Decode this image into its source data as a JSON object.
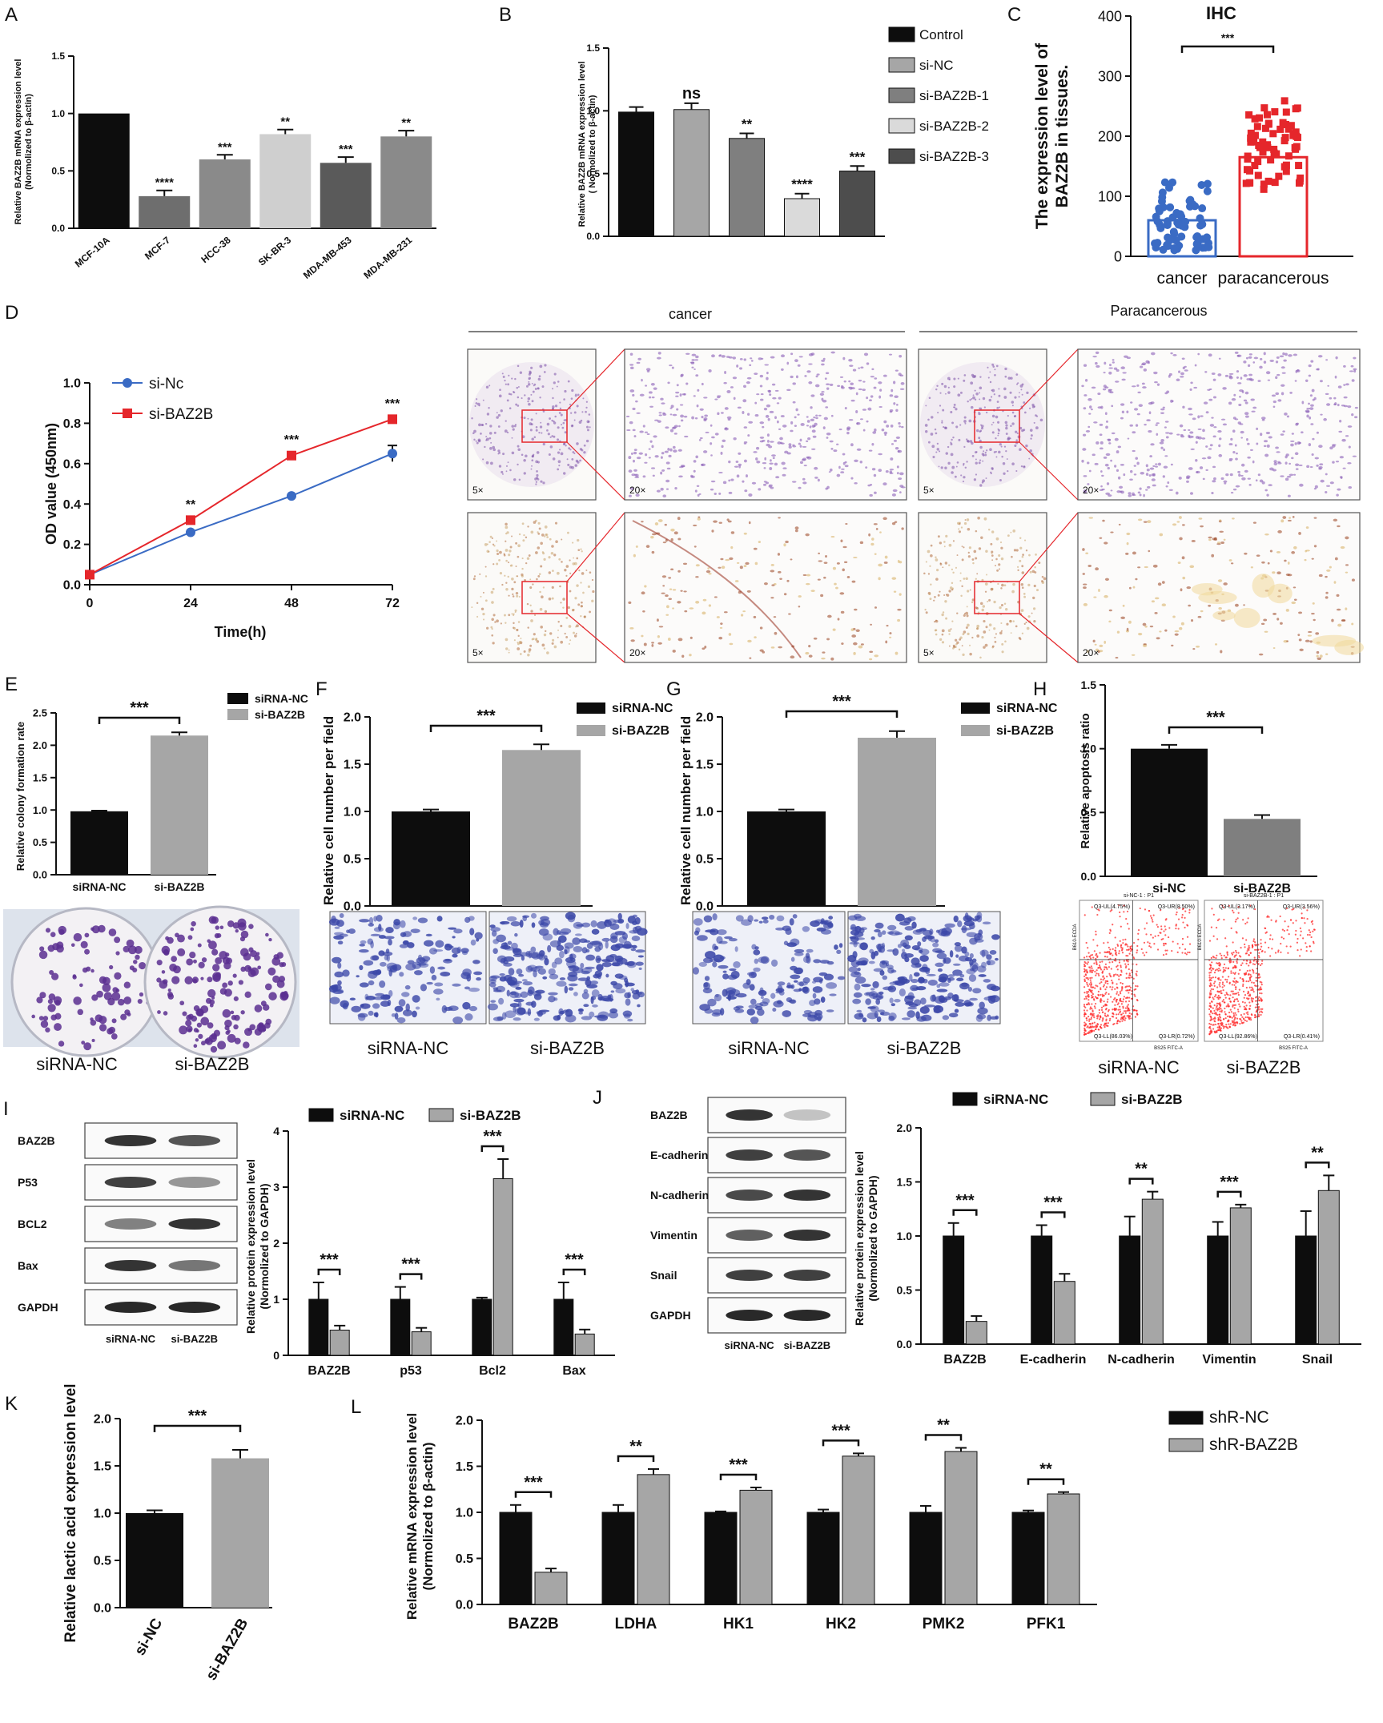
{
  "panel_letters": [
    "A",
    "B",
    "C",
    "D",
    "E",
    "F",
    "G",
    "H",
    "I",
    "J",
    "K",
    "L"
  ],
  "colors": {
    "black": "#0d0d0d",
    "gray_light": "#c8c8c8",
    "gray_med": "#a6a6a6",
    "gray_dark": "#7f7f7f",
    "gray_darker": "#5a5a5a",
    "blue": "#3a6bc4",
    "red": "#e5262b",
    "blot_band": "#2a2a2a",
    "stain_purple": "#6b3e9b",
    "transwell_blue": "#3b47a8",
    "flow_red": "#ff2a2a"
  },
  "chart_data": [
    {
      "id": "A",
      "type": "bar",
      "categories": [
        "MCF-10A",
        "MCF-7",
        "HCC-38",
        "SK-BR-3",
        "MDA-MB-453",
        "MDA-MB-231"
      ],
      "values": [
        1.0,
        0.28,
        0.6,
        0.82,
        0.57,
        0.8
      ],
      "errors": [
        0.0,
        0.05,
        0.04,
        0.04,
        0.05,
        0.05
      ],
      "significance": [
        "",
        "****",
        "***",
        "**",
        "***",
        "**"
      ],
      "colors": [
        "#0d0d0d",
        "#6e6e6e",
        "#8a8a8a",
        "#cfcfcf",
        "#5a5a5a",
        "#8a8a8a"
      ],
      "ylabel": "Relative BAZ2B mRNA expression level\n(Normolized to β-actin)",
      "ylim": [
        0,
        1.5
      ],
      "yticks": [
        0.0,
        0.5,
        1.0,
        1.5
      ],
      "ytick_labels": [
        "0.0",
        "0.5",
        "1.0",
        "1.5"
      ]
    },
    {
      "id": "B",
      "type": "bar",
      "categories": [
        "Control",
        "si-NC",
        "si-BAZ2B-1",
        "si-BAZ2B-2",
        "si-BAZ2B-3"
      ],
      "values": [
        0.99,
        1.01,
        0.78,
        0.3,
        0.52
      ],
      "errors": [
        0.04,
        0.05,
        0.04,
        0.04,
        0.04
      ],
      "significance": [
        "",
        "ns",
        "**",
        "****",
        "***"
      ],
      "colors": [
        "#0d0d0d",
        "#a6a6a6",
        "#7f7f7f",
        "#dadada",
        "#4d4d4d"
      ],
      "legend": [
        "Control",
        "si-NC",
        "si-BAZ2B-1",
        "si-BAZ2B-2",
        "si-BAZ2B-3"
      ],
      "legend_position": "right",
      "ylabel": "Relative BAZ2B mRNA expression level\n( Normolized to β-actin)",
      "ylim": [
        0,
        1.5
      ],
      "yticks": [
        0.0,
        0.5,
        1.0,
        1.5
      ],
      "ytick_labels": [
        "0.0",
        "0.5",
        "1.0",
        "1.5"
      ]
    },
    {
      "id": "C",
      "type": "scatter",
      "title": "IHC",
      "categories": [
        "cancer",
        "paracancerous"
      ],
      "bar_values": [
        60,
        165
      ],
      "point_range": [
        [
          10,
          130
        ],
        [
          60,
          300
        ]
      ],
      "colors": [
        "#3a6bc4",
        "#e5262b"
      ],
      "significance": "***",
      "ylabel": "The expression level of\nBAZ2B in tissues.",
      "ylim": [
        0,
        400
      ],
      "yticks": [
        0,
        100,
        200,
        300,
        400
      ],
      "ytick_labels": [
        "0",
        "100",
        "200",
        "300",
        "400"
      ]
    },
    {
      "id": "D",
      "type": "line",
      "x": [
        0,
        24,
        48,
        72
      ],
      "series": [
        {
          "name": "si-Nc",
          "values": [
            0.05,
            0.26,
            0.44,
            0.65
          ],
          "errors": [
            0.01,
            0.01,
            0.01,
            0.04
          ],
          "color": "#3a6bc4"
        },
        {
          "name": "si-BAZ2B",
          "values": [
            0.05,
            0.32,
            0.64,
            0.82
          ],
          "errors": [
            0.01,
            0.01,
            0.01,
            0.01
          ],
          "color": "#e5262b"
        }
      ],
      "significance": [
        "",
        "**",
        "***",
        "***"
      ],
      "xlabel": "Time(h)",
      "ylabel": "OD value (450nm)",
      "ylim": [
        0,
        1.0
      ],
      "yticks": [
        0.0,
        0.2,
        0.4,
        0.6,
        0.8,
        1.0
      ],
      "ytick_labels": [
        "0.0",
        "0.2",
        "0.4",
        "0.6",
        "0.8",
        "1.0"
      ],
      "xtick_labels": [
        "0",
        "24",
        "48",
        "72"
      ],
      "legend_position": "top-left"
    },
    {
      "id": "E",
      "type": "bar",
      "categories": [
        "siRNA-NC",
        "si-BAZ2B"
      ],
      "values": [
        0.98,
        2.15
      ],
      "errors": [
        0.01,
        0.05
      ],
      "colors": [
        "#0d0d0d",
        "#a6a6a6"
      ],
      "legend": [
        "siRNA-NC",
        "si-BAZ2B"
      ],
      "significance": "***",
      "ylabel": "Relative colony formation rate",
      "ylim": [
        0,
        2.5
      ],
      "yticks": [
        0.0,
        0.5,
        1.0,
        1.5,
        2.0,
        2.5
      ],
      "ytick_labels": [
        "0.0",
        "0.5",
        "1.0",
        "1.5",
        "2.0",
        "2.5"
      ]
    },
    {
      "id": "F",
      "type": "bar",
      "categories": [
        "siRNA-NC",
        "si-BAZ2B"
      ],
      "values": [
        1.0,
        1.65
      ],
      "errors": [
        0.02,
        0.06
      ],
      "colors": [
        "#0d0d0d",
        "#a6a6a6"
      ],
      "legend": [
        "siRNA-NC",
        "si-BAZ2B"
      ],
      "significance": "***",
      "ylabel": "Relative cell number per field",
      "ylim": [
        0,
        2.0
      ],
      "yticks": [
        0.0,
        0.5,
        1.0,
        1.5,
        2.0
      ],
      "ytick_labels": [
        "0.0",
        "0.5",
        "1.0",
        "1.5",
        "2.0"
      ]
    },
    {
      "id": "G",
      "type": "bar",
      "categories": [
        "siRNA-NC",
        "si-BAZ2B"
      ],
      "values": [
        1.0,
        1.78
      ],
      "errors": [
        0.02,
        0.07
      ],
      "colors": [
        "#0d0d0d",
        "#a6a6a6"
      ],
      "legend": [
        "siRNA-NC",
        "si-BAZ2B"
      ],
      "significance": "***",
      "ylabel": "Relative cell number per field",
      "ylim": [
        0,
        2.0
      ],
      "yticks": [
        0.0,
        0.5,
        1.0,
        1.5,
        2.0
      ],
      "ytick_labels": [
        "0.0",
        "0.5",
        "1.0",
        "1.5",
        "2.0"
      ]
    },
    {
      "id": "H",
      "type": "bar",
      "categories": [
        "si-NC",
        "si-BAZ2B"
      ],
      "values": [
        1.0,
        0.45
      ],
      "errors": [
        0.03,
        0.03
      ],
      "colors": [
        "#0d0d0d",
        "#7f7f7f"
      ],
      "significance": "***",
      "ylabel": "Relative apoptosis ratio",
      "ylim": [
        0,
        1.5
      ],
      "yticks": [
        0.0,
        0.5,
        1.0,
        1.5
      ],
      "ytick_labels": [
        "0.0",
        "0.5",
        "1.0",
        "1.5"
      ]
    },
    {
      "id": "I",
      "type": "bar",
      "categories": [
        "BAZ2B",
        "p53",
        "Bcl2",
        "Bax"
      ],
      "series": [
        {
          "name": "siRNA-NC",
          "values": [
            1.0,
            1.0,
            1.0,
            1.0
          ],
          "errors": [
            0.3,
            0.22,
            0.03,
            0.3
          ],
          "color": "#0d0d0d"
        },
        {
          "name": "si-BAZ2B",
          "values": [
            0.45,
            0.42,
            3.15,
            0.38
          ],
          "errors": [
            0.08,
            0.07,
            0.35,
            0.08
          ],
          "color": "#a6a6a6"
        }
      ],
      "significance": [
        "***",
        "***",
        "***",
        "***"
      ],
      "ylabel": "Relative protein expression level\n(Normolized to GAPDH)",
      "ylim": [
        0,
        4
      ],
      "yticks": [
        0,
        1,
        2,
        3,
        4
      ],
      "ytick_labels": [
        "0",
        "1",
        "2",
        "3",
        "4"
      ],
      "legend_position": "top"
    },
    {
      "id": "J",
      "type": "bar",
      "categories": [
        "BAZ2B",
        "E-cadherin",
        "N-cadherin",
        "Vimentin",
        "Snail"
      ],
      "series": [
        {
          "name": "siRNA-NC",
          "values": [
            1.0,
            1.0,
            1.0,
            1.0,
            1.0
          ],
          "errors": [
            0.12,
            0.1,
            0.18,
            0.13,
            0.23
          ],
          "color": "#0d0d0d"
        },
        {
          "name": "si-BAZ2B",
          "values": [
            0.21,
            0.58,
            1.34,
            1.26,
            1.42
          ],
          "errors": [
            0.05,
            0.07,
            0.07,
            0.03,
            0.14
          ],
          "color": "#a6a6a6"
        }
      ],
      "significance": [
        "***",
        "***",
        "**",
        "***",
        "**"
      ],
      "ylabel": "Relative protein expression level\n(Normolized to GAPDH)",
      "ylim": [
        0,
        2.0
      ],
      "yticks": [
        0.0,
        0.5,
        1.0,
        1.5,
        2.0
      ],
      "ytick_labels": [
        "0.0",
        "0.5",
        "1.0",
        "1.5",
        "2.0"
      ],
      "legend_position": "top"
    },
    {
      "id": "K",
      "type": "bar",
      "categories": [
        "si-NC",
        "si-BAZ2B"
      ],
      "values": [
        1.0,
        1.58
      ],
      "errors": [
        0.03,
        0.09
      ],
      "colors": [
        "#0d0d0d",
        "#a6a6a6"
      ],
      "significance": "***",
      "ylabel": "Relative lactic acid expression level",
      "ylim": [
        0,
        2.0
      ],
      "yticks": [
        0.0,
        0.5,
        1.0,
        1.5,
        2.0
      ],
      "ytick_labels": [
        "0.0",
        "0.5",
        "1.0",
        "1.5",
        "2.0"
      ]
    },
    {
      "id": "L",
      "type": "bar",
      "categories": [
        "BAZ2B",
        "LDHA",
        "HK1",
        "HK2",
        "PMK2",
        "PFK1"
      ],
      "series": [
        {
          "name": "shR-NC",
          "values": [
            1.0,
            1.0,
            1.0,
            1.0,
            1.0,
            1.0
          ],
          "errors": [
            0.08,
            0.08,
            0.01,
            0.03,
            0.07,
            0.02
          ],
          "color": "#0d0d0d"
        },
        {
          "name": "shR-BAZ2B",
          "values": [
            0.35,
            1.41,
            1.24,
            1.61,
            1.66,
            1.2
          ],
          "errors": [
            0.04,
            0.06,
            0.03,
            0.03,
            0.04,
            0.02
          ],
          "color": "#a6a6a6"
        }
      ],
      "significance": [
        "***",
        "**",
        "***",
        "***",
        "**",
        "**"
      ],
      "ylabel": "Relative mRNA expression level\n(Normolized to β-actin)",
      "ylim": [
        0,
        2.0
      ],
      "yticks": [
        0.0,
        0.5,
        1.0,
        1.5,
        2.0
      ],
      "ytick_labels": [
        "0.0",
        "0.5",
        "1.0",
        "1.5",
        "2.0"
      ],
      "legend_position": "top-right"
    }
  ],
  "images": {
    "D_columns": [
      "cancer",
      "Paracancerous"
    ],
    "D_mag_low": "5×",
    "D_mag_high": "20×",
    "E_labels": [
      "siRNA-NC",
      "si-BAZ2B"
    ],
    "F_labels": [
      "siRNA-NC",
      "si-BAZ2B"
    ],
    "G_labels": [
      "siRNA-NC",
      "si-BAZ2B"
    ],
    "H_labels": [
      "siRNA-NC",
      "si-BAZ2B"
    ],
    "H_flow_titles": [
      "si-NC-1 : P1",
      "si-BAZ2B-1 : P1"
    ],
    "H_flow_quadrants_left": [
      "Q3-UL(4.75%)",
      "Q3-UR(8.50%)",
      "Q3-LL(86.03%)",
      "Q3-LR(0.72%)"
    ],
    "H_flow_quadrants_right": [
      "Q3-UL(3.17%)",
      "Q3-UR(3.56%)",
      "Q3-LL(92.86%)",
      "Q3-LR(0.41%)"
    ],
    "H_flow_xlabel": "BS25 FITC-A",
    "H_flow_ylabel": "B610-ECDA",
    "I_blot_labels": [
      "BAZ2B",
      "P53",
      "BCL2",
      "Bax",
      "GAPDH"
    ],
    "I_lanes": [
      "siRNA-NC",
      "si-BAZ2B"
    ],
    "J_blot_labels": [
      "BAZ2B",
      "E-cadherin",
      "N-cadherin",
      "Vimentin",
      "Snail",
      "GAPDH"
    ],
    "J_lanes": [
      "siRNA-NC",
      "si-BAZ2B"
    ]
  }
}
